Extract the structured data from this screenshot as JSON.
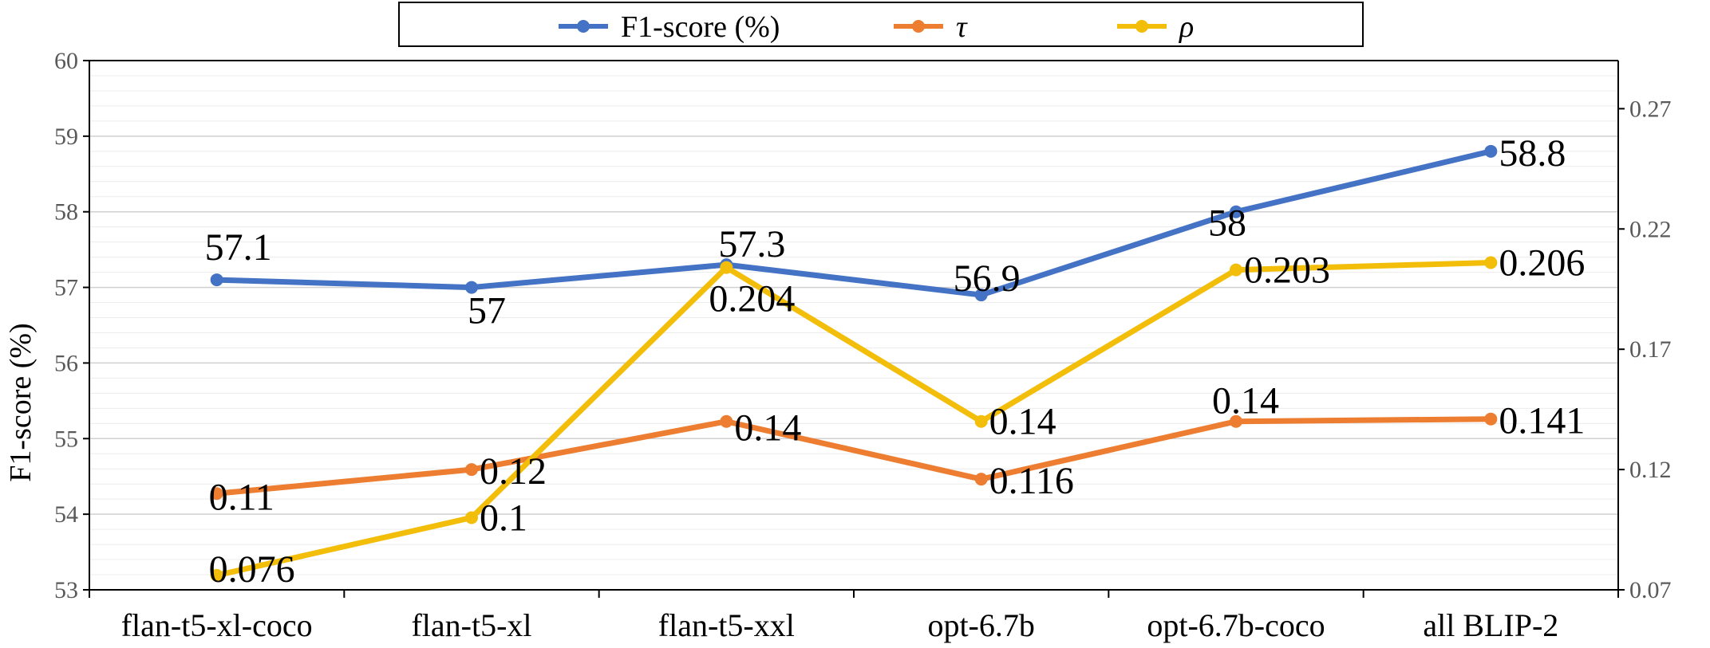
{
  "chart_data": {
    "type": "line",
    "categories": [
      "flan-t5-xl-coco",
      "flan-t5-xl",
      "flan-t5-xxl",
      "opt-6.7b",
      "opt-6.7b-coco",
      "all BLIP-2"
    ],
    "ylabel": "F1-score (%)",
    "ylim": [
      53,
      60
    ],
    "y_ticks": [
      "53",
      "54",
      "55",
      "56",
      "57",
      "58",
      "59",
      "60"
    ],
    "y2lim": [
      0.07,
      0.29
    ],
    "y2_ticks": [
      "0.07",
      "0.12",
      "0.17",
      "0.22",
      "0.27"
    ],
    "grid": true,
    "legend_position": "top",
    "series": [
      {
        "name": "F1-score (%)",
        "axis": "left",
        "color": "#4472C4",
        "values": [
          57.1,
          57.0,
          57.3,
          56.9,
          58.0,
          58.8
        ],
        "labels": [
          "57.1",
          "57",
          "57.3",
          "56.9",
          "58",
          "58.8"
        ]
      },
      {
        "name": "τ",
        "axis": "right",
        "color": "#ED7D31",
        "values": [
          0.11,
          0.12,
          0.14,
          0.116,
          0.14,
          0.141
        ],
        "labels": [
          "0.11",
          "0.12",
          "0.14",
          "0.116",
          "0.14",
          "0.141"
        ]
      },
      {
        "name": "ρ",
        "axis": "right",
        "color": "#F2BE0A",
        "values": [
          0.076,
          0.1,
          0.204,
          0.14,
          0.203,
          0.206
        ],
        "labels": [
          "0.076",
          "0.1",
          "0.204",
          "0.14",
          "0.203",
          "0.206"
        ]
      }
    ]
  }
}
